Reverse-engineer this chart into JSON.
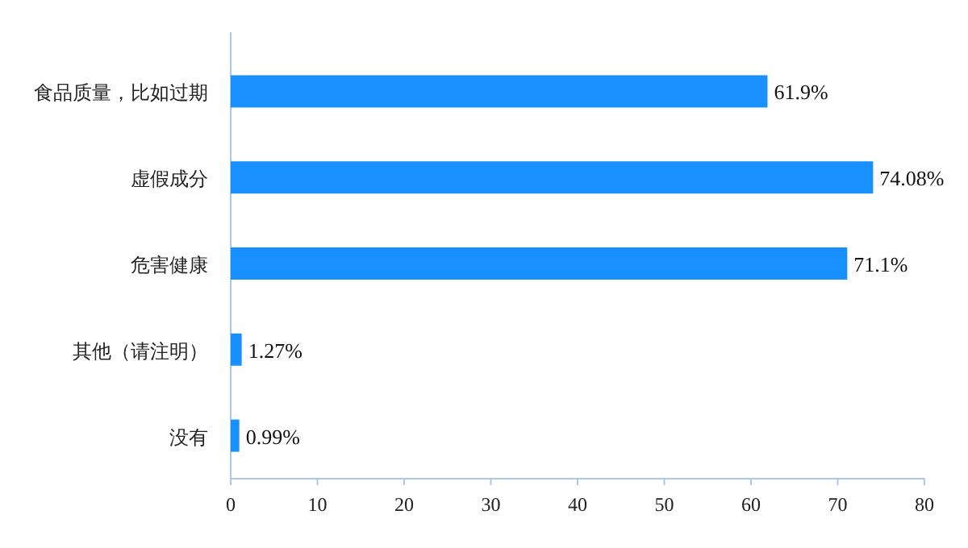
{
  "chart_data": {
    "type": "bar",
    "orientation": "horizontal",
    "categories": [
      "食品质量，比如过期",
      "虚假成分",
      "危害健康",
      "其他（请注明）",
      "没有"
    ],
    "values": [
      61.9,
      74.08,
      71.1,
      1.27,
      0.99
    ],
    "value_labels": [
      "61.9%",
      "74.08%",
      "71.1%",
      "1.27%",
      "0.99%"
    ],
    "color": "#1890ff",
    "xlim": [
      0,
      80
    ],
    "xticks": [
      0,
      10,
      20,
      30,
      40,
      50,
      60,
      70,
      80
    ],
    "grid": false
  }
}
